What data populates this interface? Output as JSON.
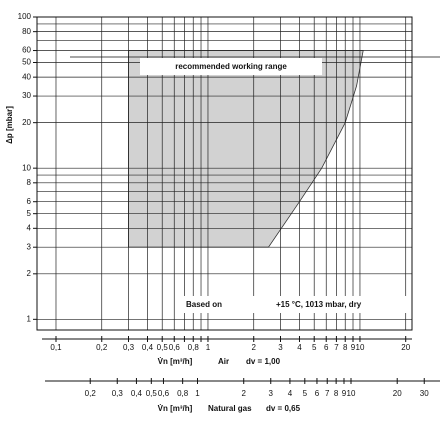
{
  "chart_data": {
    "type": "area",
    "y_label": "Δp [mbar]",
    "ylim": [
      0.85,
      100
    ],
    "log_y": true,
    "yticks": [
      1,
      2,
      3,
      4,
      5,
      6,
      8,
      10,
      20,
      30,
      40,
      50,
      60,
      80,
      100
    ],
    "y_minor_ticks": [
      7,
      9,
      70,
      90
    ],
    "xlim": [
      0.075,
      22
    ],
    "log_x": true,
    "xticks": [
      {
        "value": 0.1,
        "label": "0,1"
      },
      {
        "value": 0.2,
        "label": "0,2"
      },
      {
        "value": 0.3,
        "label": "0,3"
      },
      {
        "value": 0.4,
        "label": "0,4"
      },
      {
        "value": 0.5,
        "label": "0,5"
      },
      {
        "value": 0.6,
        "label": "0,6"
      },
      {
        "value": 0.8,
        "label": "0,8"
      },
      1,
      2,
      3,
      4,
      5,
      6,
      7,
      8,
      9,
      10,
      20
    ],
    "x_minor_ticks": [
      0.7,
      0.9
    ],
    "x_label": "V̇n [m³/h]",
    "x_series_name": "Air",
    "x_note": "dv = 1,00",
    "x2lim": [
      0.09,
      38
    ],
    "log_x2": true,
    "x2ticks": [
      {
        "value": 0.2,
        "label": "0,2"
      },
      {
        "value": 0.3,
        "label": "0,3"
      },
      {
        "value": 0.4,
        "label": "0,4"
      },
      {
        "value": 0.5,
        "label": "0,5"
      },
      {
        "value": 0.6,
        "label": "0,6"
      },
      {
        "value": 0.8,
        "label": "0,8"
      },
      1,
      2,
      3,
      4,
      5,
      6,
      7,
      8,
      9,
      10,
      20,
      30
    ],
    "x2_label": "V̇n [m³/h]",
    "x2_series_name": "Natural gas",
    "x2_note": "dv = 0,65",
    "grid": true,
    "region": {
      "name": "recommended working range",
      "color": "#d2d2d2",
      "x": [
        0.3,
        2.5,
        4,
        5.6,
        8,
        9.5,
        10.5,
        0.3
      ],
      "y": [
        3,
        3,
        6,
        10,
        20,
        35,
        60,
        60
      ]
    },
    "annotation_left": "Based on",
    "annotation_right": "+15 °C, 1013 mbar, dry"
  }
}
